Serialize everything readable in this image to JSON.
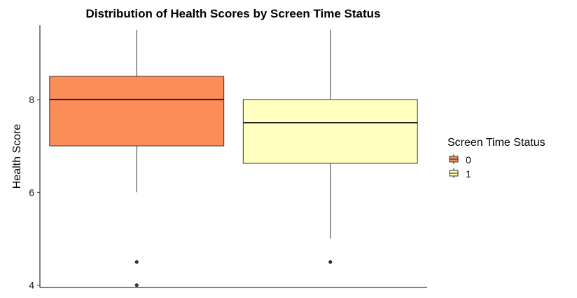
{
  "chart_data": {
    "type": "boxplot",
    "title": "Distribution of Health Scores by Screen Time Status",
    "xlabel": "",
    "ylabel": "Health Score",
    "ylim": [
      3.95,
      9.6
    ],
    "yticks": [
      4,
      6,
      8
    ],
    "grid": false,
    "legend": {
      "title": "Screen Time Status",
      "position": "right",
      "entries": [
        "0",
        "1"
      ]
    },
    "series": [
      {
        "name": "0",
        "color": "#FC8D59",
        "whisker_low": 6.0,
        "q1": 7.0,
        "median": 8.0,
        "q3": 8.5,
        "whisker_high": 9.5,
        "outliers": [
          4.5,
          4.0
        ]
      },
      {
        "name": "1",
        "color": "#FFFFBF",
        "whisker_low": 5.0,
        "q1": 6.625,
        "median": 7.5,
        "q3": 8.0,
        "whisker_high": 9.5,
        "outliers": [
          4.5
        ]
      }
    ]
  }
}
